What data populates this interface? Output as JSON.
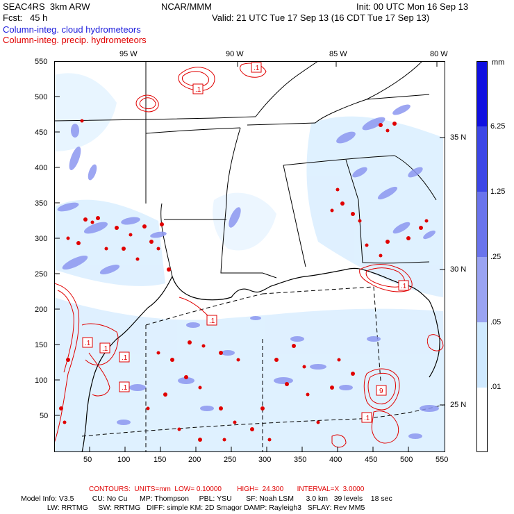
{
  "header": {
    "model": "SEAC4RS  3km ARW",
    "org": "NCAR/MMM",
    "init": "Init: 00 UTC Mon 16 Sep 13",
    "fcst": "Fcst:   45 h",
    "valid": "Valid: 21 UTC Tue 17 Sep 13 (16 CDT Tue 17 Sep 13)",
    "field1": "Column-integ. cloud hydrometeors",
    "field2": "Column-integ. precip. hydrometeors"
  },
  "map": {
    "colors": {
      "cloud_fill": "#8c96f0",
      "cloud_light": "#dcefff",
      "precip": "#e00000",
      "land_line": "#000000"
    },
    "lon_labels": [
      "95 W",
      "90 W",
      "85 W",
      "80 W"
    ],
    "lat_labels": [
      "35 N",
      "30 N",
      "25 N"
    ],
    "x_ticks": [
      "50",
      "100",
      "150",
      "200",
      "250",
      "300",
      "350",
      "400",
      "450",
      "500",
      "550"
    ],
    "y_ticks": [
      "550",
      "500",
      "450",
      "400",
      "350",
      "300",
      "250",
      "200",
      "150",
      "100",
      "50"
    ],
    "contour_labels": [
      ".1",
      ".1",
      ".1",
      ".1",
      ".1",
      ".1",
      ".1",
      ".1",
      "9",
      ".1"
    ]
  },
  "colorbar": {
    "unit": "mm",
    "levels": [
      "6.25",
      "1.25",
      ".25",
      ".05",
      ".01"
    ],
    "colors": [
      "#1010e0",
      "#3c46e6",
      "#6a74ec",
      "#9aa3f2",
      "#cfe9ff",
      "#ffffff"
    ]
  },
  "footer": {
    "contours": "CONTOURS:  UNITS=mm  LOW= 0.10000        HIGH=  24.300       INTERVAL=X  3.0000",
    "model_info_1": "Model Info: V3.5         CU: No Cu      MP: Thompson     PBL: YSU       SF: Noah LSM      3.0 km   39 levels    18 sec",
    "model_info_2": "             LW: RRTMG     SW: RRTMG   DIFF: simple KM: 2D Smagor DAMP: Rayleigh3   SFLAY: Rev MM5"
  }
}
